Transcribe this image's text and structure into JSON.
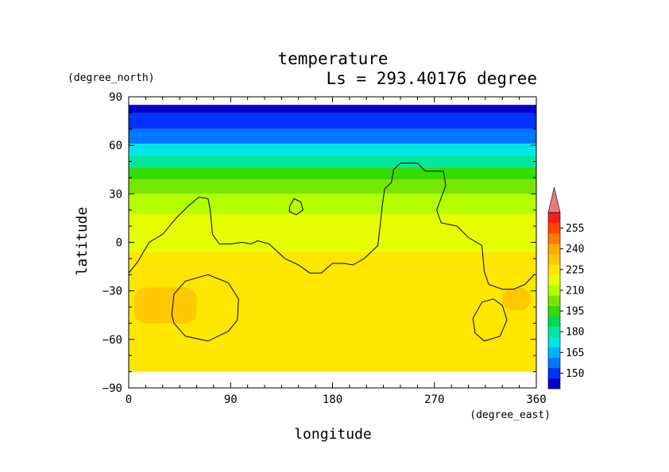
{
  "chart_data": {
    "type": "heatmap",
    "title": "temperature",
    "subtitle": "Ls = 293.40176 degree",
    "xlabel": "longitude",
    "ylabel": "latitude",
    "x_unit": "(degree_east)",
    "y_unit": "(degree_north)",
    "xlim": [
      0,
      360
    ],
    "ylim": [
      -90,
      90
    ],
    "x_ticks": [
      0,
      90,
      180,
      270,
      360
    ],
    "y_ticks": [
      -90,
      -60,
      -30,
      0,
      30,
      60,
      90
    ],
    "x_tick_labels": [
      "0",
      "90",
      "180",
      "270",
      "360"
    ],
    "y_tick_labels": [
      "−90",
      "−60",
      "−30",
      "0",
      "30",
      "60",
      "90"
    ],
    "colorbar": {
      "levels": [
        150,
        165,
        180,
        195,
        210,
        225,
        240,
        255
      ],
      "labels": [
        "150",
        "165",
        "180",
        "195",
        "210",
        "225",
        "240",
        "255"
      ],
      "extend": "both",
      "colors": [
        "#0000c8",
        "#0032ff",
        "#0078ff",
        "#00b4ff",
        "#00e6e6",
        "#00e6a0",
        "#00dc50",
        "#32dc00",
        "#78e600",
        "#b4ff00",
        "#e6ff00",
        "#ffe600",
        "#ffc800",
        "#ffaa00",
        "#ff7800",
        "#ff4600",
        "#ff1e1e",
        "#f07878"
      ]
    },
    "latitude_profile": [
      {
        "lat": 85,
        "value": 145
      },
      {
        "lat": 75,
        "value": 150
      },
      {
        "lat": 65,
        "value": 160
      },
      {
        "lat": 57,
        "value": 172
      },
      {
        "lat": 50,
        "value": 184
      },
      {
        "lat": 43,
        "value": 196
      },
      {
        "lat": 35,
        "value": 206
      },
      {
        "lat": 25,
        "value": 213
      },
      {
        "lat": 10,
        "value": 218
      },
      {
        "lat": 0,
        "value": 221
      },
      {
        "lat": -12,
        "value": 224
      },
      {
        "lat": -20,
        "value": 227
      },
      {
        "lat": -35,
        "value": 229
      },
      {
        "lat": -55,
        "value": 230
      },
      {
        "lat": -70,
        "value": 228
      },
      {
        "lat": -80,
        "value": 226
      }
    ],
    "warm_regions": [
      {
        "lon_range": [
          5,
          145
        ],
        "lat_range": [
          -80,
          -18
        ],
        "value": 230
      },
      {
        "lon_range": [
          5,
          60
        ],
        "lat_range": [
          -50,
          -28
        ],
        "value": 236
      },
      {
        "lon_range": [
          290,
          355
        ],
        "lat_range": [
          -78,
          -22
        ],
        "value": 231
      },
      {
        "lon_range": [
          330,
          355
        ],
        "lat_range": [
          -42,
          -28
        ],
        "value": 236
      }
    ],
    "contours": [
      {
        "name": "coastline",
        "points": [
          [
            0,
            -19
          ],
          [
            8,
            -12
          ],
          [
            18,
            0
          ],
          [
            30,
            5
          ],
          [
            42,
            15
          ],
          [
            52,
            22
          ],
          [
            62,
            28
          ],
          [
            70,
            27
          ],
          [
            72,
            20
          ],
          [
            74,
            5
          ],
          [
            80,
            -1
          ],
          [
            90,
            -1
          ],
          [
            100,
            0
          ],
          [
            108,
            -1
          ],
          [
            114,
            1
          ],
          [
            124,
            -1
          ],
          [
            138,
            -10
          ],
          [
            150,
            -14
          ],
          [
            160,
            -19
          ],
          [
            170,
            -19
          ],
          [
            180,
            -13
          ],
          [
            190,
            -13
          ],
          [
            198,
            -14
          ],
          [
            208,
            -10
          ],
          [
            220,
            -2
          ],
          [
            222,
            10
          ],
          [
            224,
            23
          ],
          [
            226,
            33
          ],
          [
            232,
            37
          ],
          [
            234,
            45
          ],
          [
            240,
            49
          ],
          [
            255,
            49
          ],
          [
            262,
            44
          ],
          [
            278,
            44
          ],
          [
            280,
            35
          ],
          [
            272,
            20
          ],
          [
            276,
            12
          ],
          [
            290,
            10
          ],
          [
            300,
            3
          ],
          [
            312,
            -2
          ],
          [
            314,
            -18
          ],
          [
            318,
            -26
          ],
          [
            330,
            -29
          ],
          [
            340,
            -29
          ],
          [
            350,
            -26
          ],
          [
            358,
            -20
          ]
        ]
      },
      {
        "name": "island",
        "points": [
          [
            142,
            22
          ],
          [
            146,
            27
          ],
          [
            152,
            25
          ],
          [
            154,
            20
          ],
          [
            148,
            17
          ],
          [
            142,
            19
          ],
          [
            142,
            22
          ]
        ]
      },
      {
        "name": "western-basin",
        "points": [
          [
            38,
            -45
          ],
          [
            40,
            -32
          ],
          [
            50,
            -24
          ],
          [
            70,
            -20
          ],
          [
            88,
            -25
          ],
          [
            97,
            -35
          ],
          [
            96,
            -48
          ],
          [
            88,
            -55
          ],
          [
            70,
            -61
          ],
          [
            50,
            -58
          ],
          [
            40,
            -50
          ],
          [
            38,
            -45
          ]
        ]
      },
      {
        "name": "eastern-basin",
        "points": [
          [
            304,
            -47
          ],
          [
            312,
            -37
          ],
          [
            322,
            -35
          ],
          [
            330,
            -39
          ],
          [
            334,
            -48
          ],
          [
            328,
            -58
          ],
          [
            314,
            -61
          ],
          [
            306,
            -56
          ],
          [
            304,
            -47
          ]
        ]
      }
    ]
  }
}
